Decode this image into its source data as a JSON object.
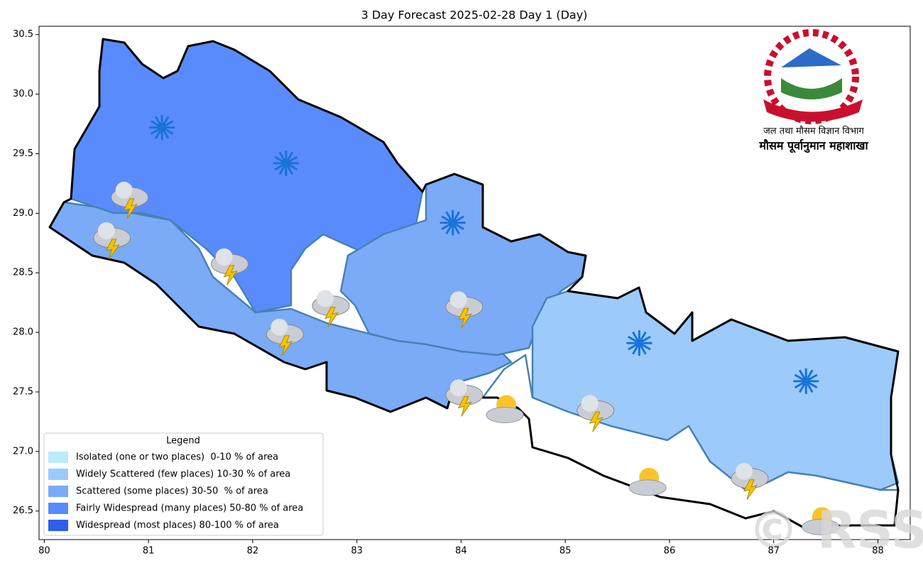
{
  "chart_data": {
    "type": "map",
    "title": "3 Day Forecast 2025-02-28 Day 1 (Day)",
    "xlim": [
      79.95,
      88.31
    ],
    "ylim": [
      26.26,
      30.57
    ],
    "xticks": [
      80,
      81,
      82,
      83,
      84,
      85,
      86,
      87,
      88
    ],
    "yticks": [
      26.5,
      {
        "value": 27,
        "label": "27.0"
      },
      27.5,
      {
        "value": 28,
        "label": "28.0"
      },
      28.5,
      {
        "value": 29,
        "label": "29.0"
      },
      29.5,
      {
        "value": 30,
        "label": "30.0"
      },
      30.5
    ],
    "legend": {
      "title": "Legend",
      "corner": "lower left",
      "items": [
        {
          "label": "Isolated (one or two places)  0-10 % of area",
          "color": "#b9ecfd"
        },
        {
          "label": "Widely Scattered (few places) 10-30 % of area",
          "color": "#9ccafb"
        },
        {
          "label": "Scattered (some places) 30-50  % of area",
          "color": "#7baaf7"
        },
        {
          "label": "Fairly Widespread (many places) 50-80 % of area",
          "color": "#5a8bfc"
        },
        {
          "label": "Widespread (most places) 80-100 % of area",
          "color": "#2f5fe8"
        }
      ]
    },
    "icons": [
      {
        "kind": "snow",
        "lon": 81.13,
        "lat": 29.72
      },
      {
        "kind": "snow",
        "lon": 82.32,
        "lat": 29.42
      },
      {
        "kind": "snow",
        "lon": 83.92,
        "lat": 28.92
      },
      {
        "kind": "snow",
        "lon": 85.71,
        "lat": 27.91
      },
      {
        "kind": "snow",
        "lon": 87.31,
        "lat": 27.59
      },
      {
        "kind": "thunder",
        "lon": 80.82,
        "lat": 29.11
      },
      {
        "kind": "thunder",
        "lon": 80.65,
        "lat": 28.77
      },
      {
        "kind": "thunder",
        "lon": 81.78,
        "lat": 28.55
      },
      {
        "kind": "thunder",
        "lon": 82.75,
        "lat": 28.2
      },
      {
        "kind": "thunder",
        "lon": 84.03,
        "lat": 28.19
      },
      {
        "kind": "thunder",
        "lon": 82.31,
        "lat": 27.96
      },
      {
        "kind": "thunder",
        "lon": 84.03,
        "lat": 27.45
      },
      {
        "kind": "thunder",
        "lon": 85.29,
        "lat": 27.32
      },
      {
        "kind": "thunder",
        "lon": 86.77,
        "lat": 26.75
      },
      {
        "kind": "sun-cloud",
        "lon": 84.42,
        "lat": 27.33
      },
      {
        "kind": "sun-cloud",
        "lon": 85.79,
        "lat": 26.72
      },
      {
        "kind": "sun-cloud",
        "lon": 87.45,
        "lat": 26.39
      }
    ],
    "logo": {
      "department": "जल तथा मौसम विज्ञान विभाग",
      "division": "मौसम पूर्वानुमान महाशाखा"
    },
    "watermark": "© RSS"
  }
}
